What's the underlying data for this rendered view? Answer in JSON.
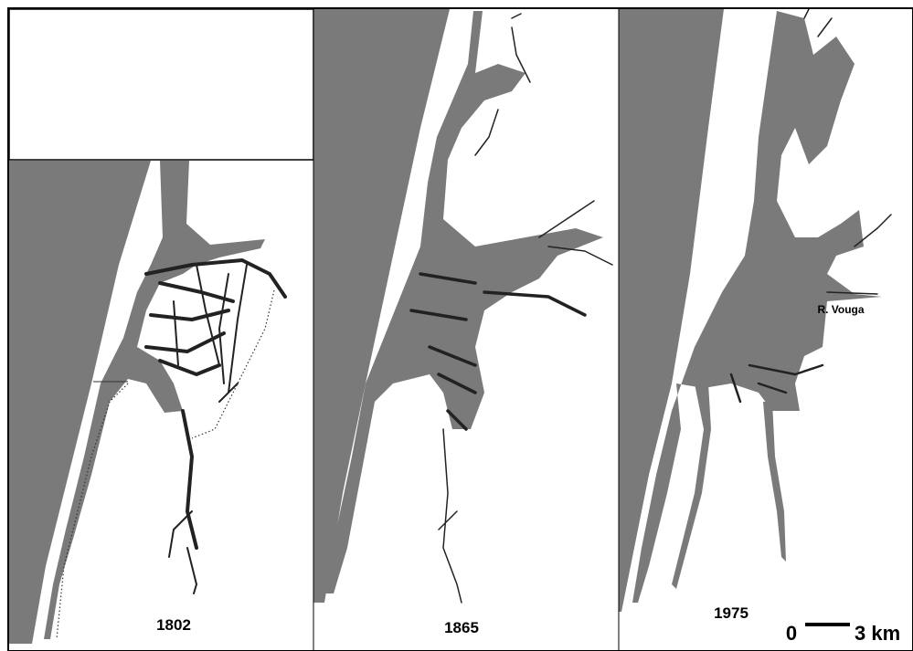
{
  "panels": [
    {
      "year": "1802"
    },
    {
      "year": "1865"
    },
    {
      "year": "1975"
    }
  ],
  "river_label": "R. Vouga",
  "scale_bar": {
    "start": "0",
    "end": "3 km"
  }
}
